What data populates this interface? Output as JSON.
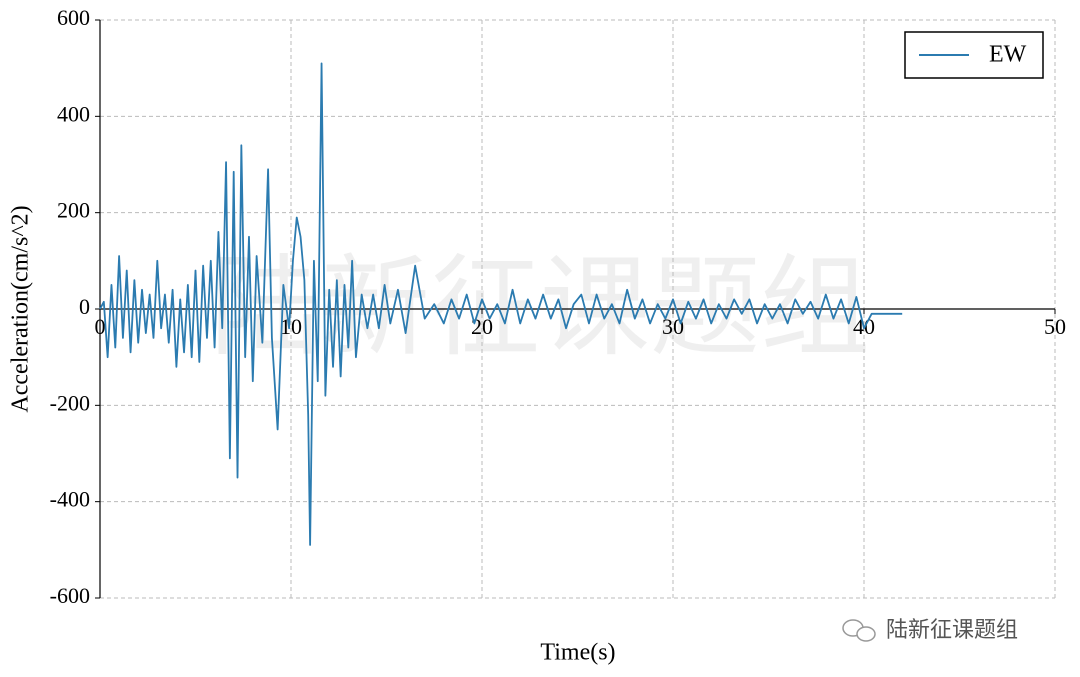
{
  "chart_data": {
    "type": "line",
    "xlabel": "Time(s)",
    "ylabel": "Acceleration(cm/s^2)",
    "watermark": "陆新征课题组",
    "credit": "陆新征课题组",
    "x": [
      0,
      0.2,
      0.4,
      0.6,
      0.8,
      1.0,
      1.2,
      1.4,
      1.6,
      1.8,
      2.0,
      2.2,
      2.4,
      2.6,
      2.8,
      3.0,
      3.2,
      3.4,
      3.6,
      3.8,
      4.0,
      4.2,
      4.4,
      4.6,
      4.8,
      5.0,
      5.2,
      5.4,
      5.6,
      5.8,
      6.0,
      6.2,
      6.4,
      6.6,
      6.8,
      7.0,
      7.2,
      7.4,
      7.6,
      7.8,
      8.0,
      8.2,
      8.5,
      8.8,
      9.0,
      9.3,
      9.6,
      9.9,
      10.1,
      10.3,
      10.5,
      10.7,
      10.9,
      11.0,
      11.2,
      11.4,
      11.6,
      11.8,
      12.0,
      12.2,
      12.4,
      12.6,
      12.8,
      13.0,
      13.2,
      13.4,
      13.7,
      14.0,
      14.3,
      14.6,
      14.9,
      15.2,
      15.6,
      16.0,
      16.5,
      17.0,
      17.5,
      18.0,
      18.4,
      18.8,
      19.2,
      19.6,
      20.0,
      20.4,
      20.8,
      21.2,
      21.6,
      22.0,
      22.4,
      22.8,
      23.2,
      23.6,
      24.0,
      24.4,
      24.8,
      25.2,
      25.6,
      26.0,
      26.4,
      26.8,
      27.2,
      27.6,
      28.0,
      28.4,
      28.8,
      29.2,
      29.6,
      30.0,
      30.4,
      30.8,
      31.2,
      31.6,
      32.0,
      32.4,
      32.8,
      33.2,
      33.6,
      34.0,
      34.4,
      34.8,
      35.2,
      35.6,
      36.0,
      36.4,
      36.8,
      37.2,
      37.6,
      38.0,
      38.4,
      38.8,
      39.2,
      39.6,
      40.0,
      40.4,
      41.0,
      42.0
    ],
    "series": [
      {
        "name": "EW",
        "color": "#2b7bb0",
        "values": [
          0,
          15,
          -100,
          50,
          -80,
          110,
          -60,
          80,
          -90,
          60,
          -70,
          40,
          -50,
          30,
          -60,
          100,
          -40,
          30,
          -70,
          40,
          -120,
          20,
          -90,
          50,
          -100,
          80,
          -110,
          90,
          -60,
          100,
          -80,
          160,
          -40,
          305,
          -310,
          285,
          -350,
          340,
          -100,
          150,
          -150,
          110,
          -70,
          290,
          -60,
          -250,
          50,
          -40,
          100,
          190,
          150,
          60,
          -220,
          -490,
          100,
          -150,
          510,
          -180,
          40,
          -120,
          60,
          -140,
          50,
          -80,
          100,
          -100,
          30,
          -40,
          30,
          -40,
          50,
          -30,
          40,
          -50,
          90,
          -20,
          10,
          -30,
          20,
          -20,
          30,
          -30,
          20,
          -20,
          10,
          -30,
          40,
          -30,
          20,
          -20,
          30,
          -20,
          20,
          -40,
          10,
          30,
          -30,
          30,
          -20,
          10,
          -30,
          40,
          -20,
          20,
          -30,
          10,
          -20,
          20,
          -30,
          15,
          -20,
          20,
          -30,
          10,
          -20,
          20,
          -10,
          20,
          -30,
          10,
          -20,
          10,
          -30,
          20,
          -10,
          15,
          -20,
          30,
          -20,
          20,
          -30,
          25,
          -40,
          -10,
          -10,
          -10
        ]
      }
    ],
    "xlim": [
      0,
      50
    ],
    "ylim": [
      -600,
      600
    ],
    "xticks": [
      0,
      10,
      20,
      30,
      40,
      50
    ],
    "yticks": [
      -600,
      -400,
      -200,
      0,
      200,
      400,
      600
    ],
    "grid": true,
    "legend": "upper right"
  }
}
